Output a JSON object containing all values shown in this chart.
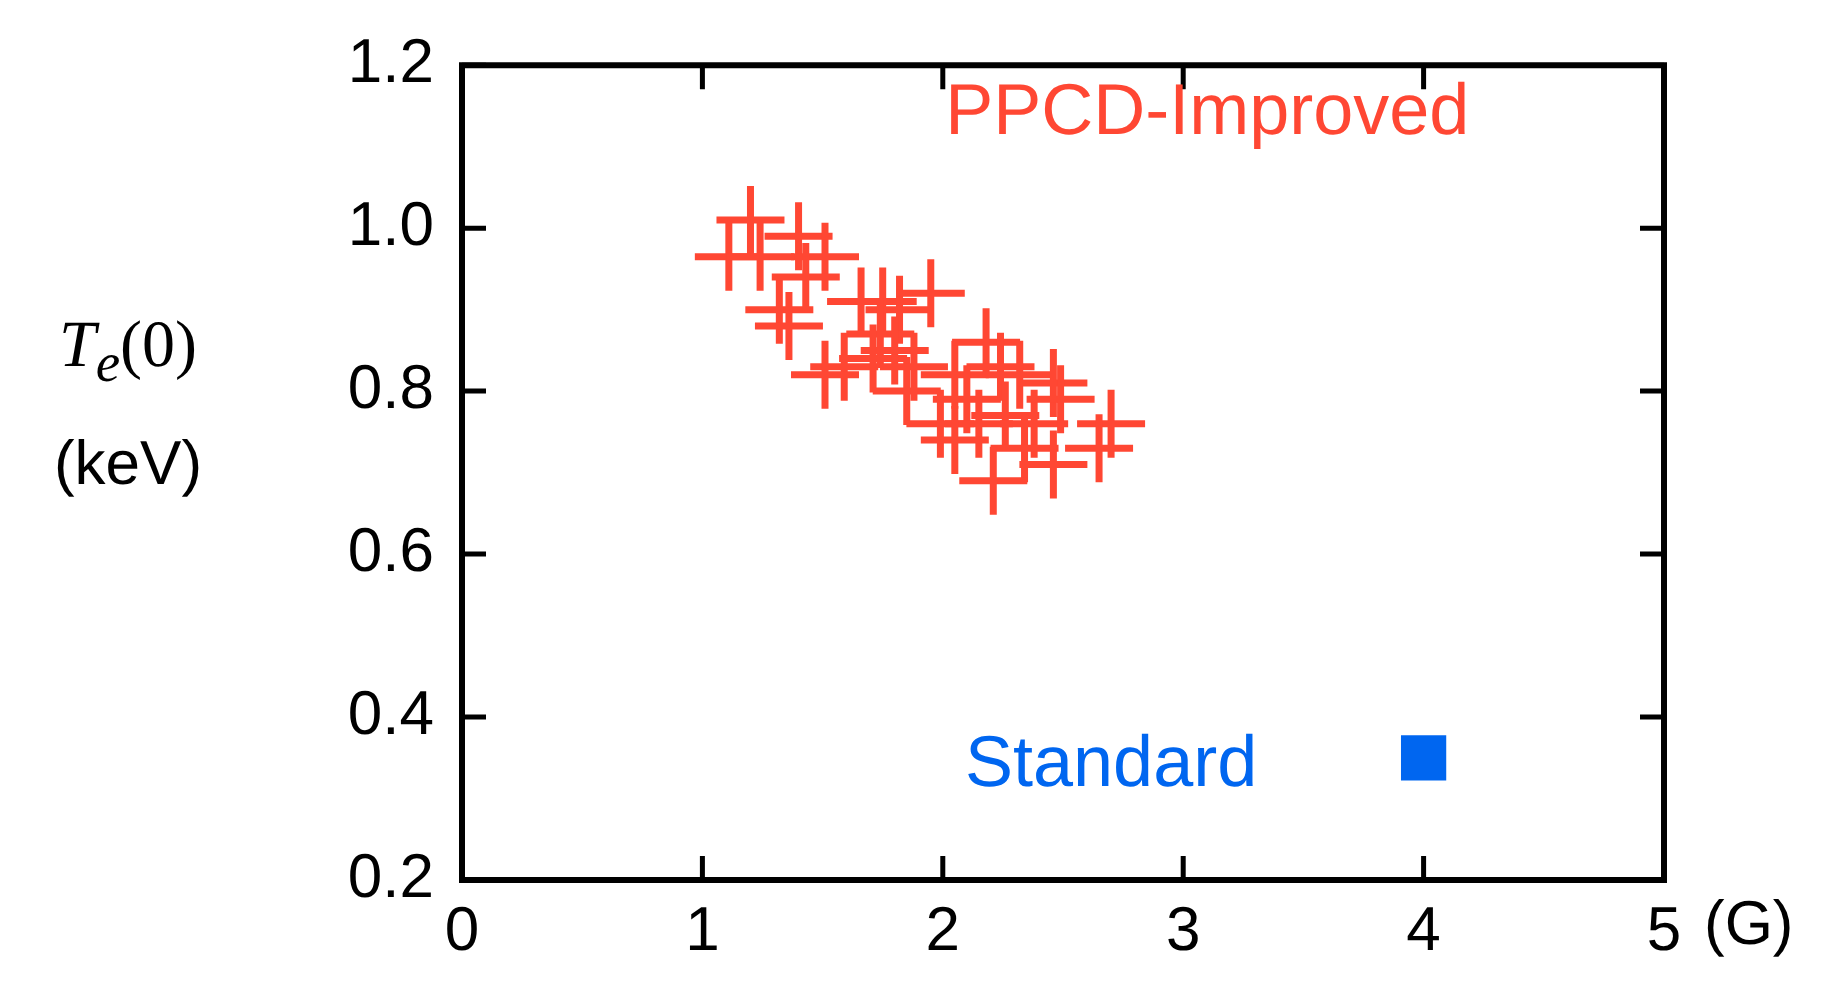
{
  "chart_data": {
    "type": "scatter",
    "ylabel": "T$_{e}$(0) (keV)",
    "xlabel": "(G)",
    "xlim": [
      0,
      5
    ],
    "xticks": [
      0,
      1,
      2,
      3,
      4,
      5
    ],
    "ylim": [
      0.2,
      1.2
    ],
    "yticks": [
      0.2,
      0.4,
      0.6,
      0.8,
      {
        "value": 1,
        "label": "1.0"
      },
      1.2
    ],
    "grid": false,
    "series": [
      {
        "name": "PPCD-Improved",
        "color": "#ff4733",
        "marker": "cross",
        "x": [
          1.2,
          1.11,
          1.4,
          1.51,
          1.24,
          1.32,
          1.36,
          1.43,
          1.66,
          1.75,
          1.82,
          1.95,
          1.74,
          1.59,
          1.51,
          1.71,
          1.8,
          1.85,
          1.93,
          2.05,
          2.18,
          2.24,
          2.32,
          2.46,
          2.1,
          1.99,
          2.15,
          2.26,
          2.38,
          2.34,
          2.46,
          2.05,
          2.21,
          2.7,
          2.65,
          2.49,
          1.88
        ],
        "values": [
          1.01,
          0.965,
          0.99,
          0.965,
          0.965,
          0.9,
          0.88,
          0.94,
          0.91,
          0.91,
          0.9,
          0.92,
          0.87,
          0.83,
          0.82,
          0.84,
          0.85,
          0.8,
          null,
          0.82,
          0.86,
          0.83,
          0.82,
          0.81,
          0.79,
          0.76,
          0.76,
          0.77,
          0.76,
          0.73,
          0.71,
          0.74,
          0.69,
          0.76,
          0.73,
          0.79,
          0.83
        ]
      },
      {
        "name": "Standard",
        "color": "#0066f0",
        "marker": "square",
        "x": [
          4
        ],
        "values": [
          0.35
        ]
      }
    ]
  }
}
